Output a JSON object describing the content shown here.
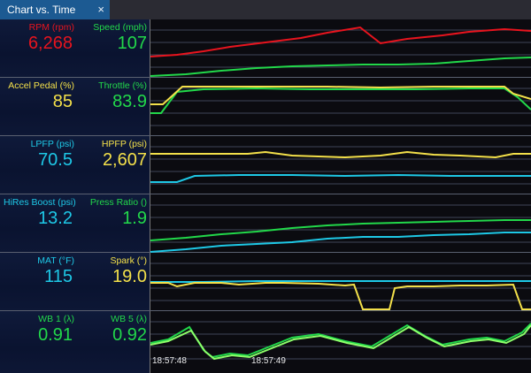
{
  "tab": {
    "title": "Chart vs. Time",
    "close_icon": "×"
  },
  "rows": [
    {
      "left": {
        "label": "RPM (rpm)",
        "value": "6,268",
        "color": "#e8141e"
      },
      "right": {
        "label": "Speed (mph)",
        "value": "107",
        "color": "#22d84a"
      }
    },
    {
      "left": {
        "label": "Accel Pedal (%)",
        "value": "85",
        "color": "#f3e04a"
      },
      "right": {
        "label": "Throttle (%)",
        "value": "83.9",
        "color": "#22d84a"
      }
    },
    {
      "left": {
        "label": "LPFP (psi)",
        "value": "70.5",
        "color": "#1ec8e6"
      },
      "right": {
        "label": "HPFP (psi)",
        "value": "2,607",
        "color": "#f3e04a"
      }
    },
    {
      "left": {
        "label": "HiRes Boost (psi)",
        "value": "13.2",
        "color": "#1ec8e6"
      },
      "right": {
        "label": "Press Ratio ()",
        "value": "1.9",
        "color": "#22d84a"
      }
    },
    {
      "left": {
        "label": "MAT (°F)",
        "value": "115",
        "color": "#1ec8e6"
      },
      "right": {
        "label": "Spark (°)",
        "value": "19.0",
        "color": "#f3e04a"
      }
    },
    {
      "left": {
        "label": "WB 1 (λ)",
        "value": "0.91",
        "color": "#22d84a"
      },
      "right": {
        "label": "WB 5 (λ)",
        "value": "0.92",
        "color": "#22d84a"
      }
    }
  ],
  "time_axis": {
    "ticks": [
      "18:57:48",
      "18:57:49"
    ]
  }
}
